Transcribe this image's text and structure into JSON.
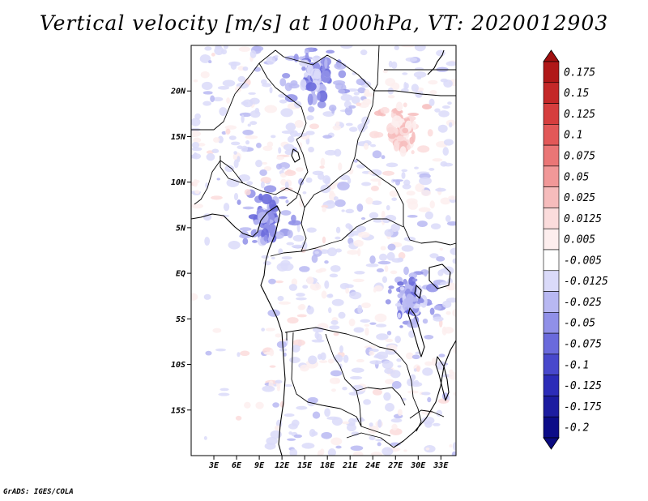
{
  "title": "Vertical velocity [m/s] at 1000hPa, VT: 2020012903",
  "credit": "GrADS: IGES/COLA",
  "chart_data": {
    "type": "heatmap",
    "title": "Vertical velocity [m/s] at 1000hPa, VT: 2020012903",
    "variable": "Vertical velocity",
    "units": "m/s",
    "level": "1000hPa",
    "valid_time": "2020012903",
    "lon_range": [
      0,
      35
    ],
    "lat_range": [
      -20,
      25
    ],
    "x_ticks": [
      {
        "value": 3,
        "label": "3E"
      },
      {
        "value": 6,
        "label": "6E"
      },
      {
        "value": 9,
        "label": "9E"
      },
      {
        "value": 12,
        "label": "12E"
      },
      {
        "value": 15,
        "label": "15E"
      },
      {
        "value": 18,
        "label": "18E"
      },
      {
        "value": 21,
        "label": "21E"
      },
      {
        "value": 24,
        "label": "24E"
      },
      {
        "value": 27,
        "label": "27E"
      },
      {
        "value": 30,
        "label": "30E"
      },
      {
        "value": 33,
        "label": "33E"
      }
    ],
    "y_ticks": [
      {
        "value": 20,
        "label": "20N"
      },
      {
        "value": 15,
        "label": "15N"
      },
      {
        "value": 10,
        "label": "10N"
      },
      {
        "value": 5,
        "label": "5N"
      },
      {
        "value": 0,
        "label": "EQ"
      },
      {
        "value": -5,
        "label": "5S"
      },
      {
        "value": -10,
        "label": "10S"
      },
      {
        "value": -15,
        "label": "15S"
      }
    ],
    "colorbar": {
      "orientation": "vertical",
      "placement": "right",
      "extend": "both",
      "levels": [
        {
          "label": "0.175",
          "color": "#b01818"
        },
        {
          "label": "0.15",
          "color": "#c42828"
        },
        {
          "label": "0.125",
          "color": "#d63e3e"
        },
        {
          "label": "0.1",
          "color": "#e25858"
        },
        {
          "label": "0.075",
          "color": "#ea7676"
        },
        {
          "label": "0.05",
          "color": "#f19898"
        },
        {
          "label": "0.025",
          "color": "#f6bcbc"
        },
        {
          "label": "0.0125",
          "color": "#fbdcdc"
        },
        {
          "label": "0.005",
          "color": "#fdeeee"
        },
        {
          "label": "-0.005",
          "color": "#ffffff"
        },
        {
          "label": "-0.0125",
          "color": "#dadaf9"
        },
        {
          "label": "-0.025",
          "color": "#b8b8f2"
        },
        {
          "label": "-0.05",
          "color": "#9090e8"
        },
        {
          "label": "-0.075",
          "color": "#6a6adc"
        },
        {
          "label": "-0.1",
          "color": "#4848cc"
        },
        {
          "label": "-0.125",
          "color": "#2c2cb8"
        },
        {
          "label": "-0.175",
          "color": "#1c1ca0"
        },
        {
          "label": "-0.2",
          "color": "#0c0c88"
        }
      ],
      "top_extension_color": "#a01010",
      "bottom_extension_color": "#0a0a80"
    },
    "notable_features": [
      {
        "description": "Strongest descent over Nile region",
        "lon": 16.5,
        "lat": 21.5,
        "range": "-0.05 to -0.075"
      },
      {
        "description": "Descent band near Cameroon line",
        "lon": 10.0,
        "lat": 6.0,
        "range": "-0.025 to -0.05"
      },
      {
        "description": "Descent along western Rift / Lake Tanganyika",
        "lon": 29.0,
        "lat": -3.0,
        "range": "-0.025 to -0.05"
      },
      {
        "description": "Weak ascent patches over Sudan",
        "lon": 28.0,
        "lat": 16.0,
        "range": "0.005 to 0.025"
      }
    ]
  }
}
